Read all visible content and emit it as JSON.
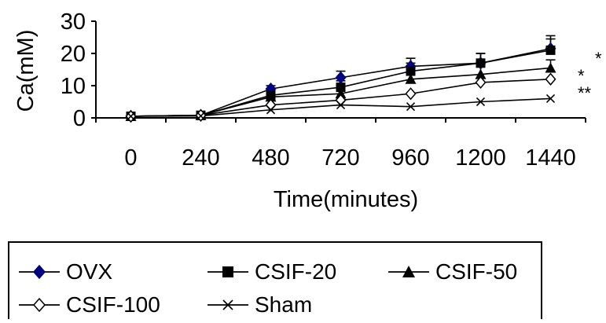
{
  "chart_data": {
    "type": "line",
    "title": "",
    "xlabel": "Time(minutes)",
    "ylabel": "Ca(mM)",
    "x": [
      0,
      240,
      480,
      720,
      960,
      1200,
      1440
    ],
    "yticks": [
      0,
      10,
      20,
      30
    ],
    "ylim": [
      0,
      30
    ],
    "grid": false,
    "legend_position": "bottom",
    "series": [
      {
        "name": "OVX",
        "marker": "filled-diamond",
        "color": "#000080",
        "values": [
          0.5,
          0.8,
          9.0,
          12.5,
          16.0,
          17.0,
          21.5
        ],
        "errors": [
          0,
          0,
          1.0,
          2.0,
          2.5,
          3.0,
          4.0
        ]
      },
      {
        "name": "CSIF-20",
        "marker": "filled-square",
        "color": "#000000",
        "values": [
          0.5,
          0.8,
          7.0,
          9.5,
          14.5,
          17.0,
          21.0
        ],
        "errors": [
          0,
          0,
          1.5,
          2.0,
          2.5,
          3.0,
          3.5
        ]
      },
      {
        "name": "CSIF-50",
        "marker": "filled-triangle",
        "color": "#000000",
        "values": [
          0.5,
          0.8,
          6.5,
          7.5,
          12.0,
          13.5,
          15.5
        ],
        "errors": [
          0,
          0,
          1.0,
          1.5,
          2.0,
          2.5,
          2.5
        ]
      },
      {
        "name": "CSIF-100",
        "marker": "open-diamond",
        "color": "#000000",
        "values": [
          0.5,
          0.8,
          4.0,
          5.5,
          7.5,
          11.0,
          12.0
        ],
        "errors": [
          0,
          0,
          0,
          0,
          0,
          0,
          0
        ]
      },
      {
        "name": "Sham",
        "marker": "x",
        "color": "#000000",
        "values": [
          0.5,
          0.6,
          2.5,
          4.0,
          3.5,
          5.0,
          6.0
        ],
        "errors": [
          0,
          0,
          0,
          0,
          0,
          0,
          0
        ]
      }
    ],
    "annotations": [
      "*",
      "*",
      "**"
    ]
  }
}
